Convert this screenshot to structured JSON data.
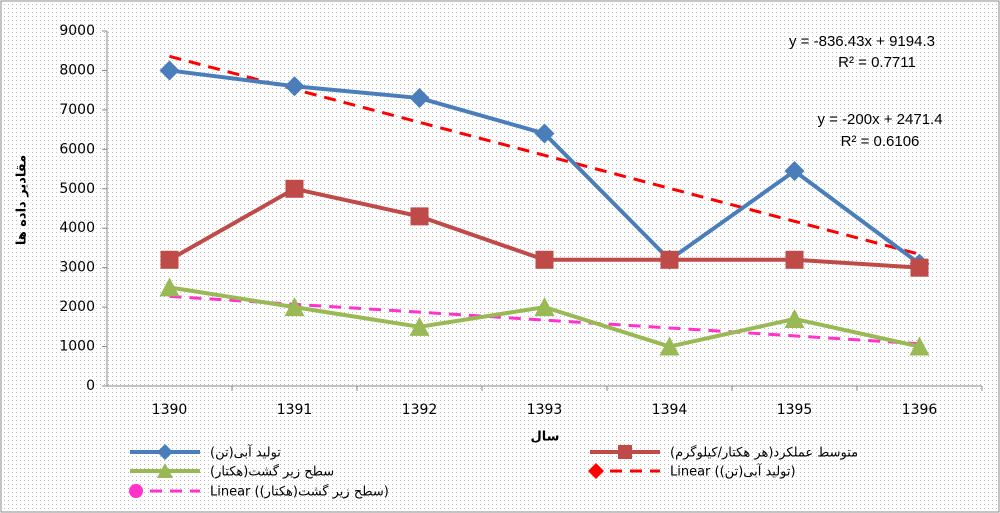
{
  "chart_data": {
    "type": "line",
    "categories": [
      "1390",
      "1391",
      "1392",
      "1393",
      "1394",
      "1395",
      "1396"
    ],
    "series": [
      {
        "name": "تولید آبی(تن)",
        "color": "#4a7ebb",
        "marker": "diamond",
        "dashed": false,
        "values": [
          8000,
          7600,
          7300,
          6400,
          3200,
          5450,
          3100
        ]
      },
      {
        "name": "متوسط عملکرد(هر هکتار/کیلوگرم)",
        "color": "#be4b48",
        "marker": "square",
        "dashed": false,
        "values": [
          3200,
          5000,
          4300,
          3200,
          3200,
          3200,
          3000
        ]
      },
      {
        "name": "سطح زیر گشت(هکتار)",
        "color": "#98b954",
        "marker": "triangle",
        "dashed": false,
        "values": [
          2500,
          2000,
          1500,
          2000,
          1000,
          1700,
          1000
        ]
      },
      {
        "name": "Linear (تولید آبی(تن))",
        "color": "#ff0000",
        "marker": "diamond",
        "dashed": true,
        "values": [
          8357.9,
          7521.4,
          6685.0,
          5848.6,
          5012.2,
          4175.7,
          3339.3
        ]
      },
      {
        "name": "Linear (سطح زیر گشت(هکتار))",
        "color": "#ff33cc",
        "marker": "circle",
        "dashed": true,
        "values": [
          2271.4,
          2071.4,
          1871.4,
          1671.4,
          1471.4,
          1271.4,
          1071.4
        ]
      }
    ],
    "ylim": [
      0,
      9000
    ],
    "yticks": [
      0,
      1000,
      2000,
      3000,
      4000,
      5000,
      6000,
      7000,
      8000,
      9000
    ],
    "grid": false,
    "x_label": "سال",
    "y_label": "مقادیر داده ها",
    "annotations": [
      "y = -836.43x + 9194.3",
      "R² = 0.7711",
      "y = -200x + 2471.4",
      "R² = 0.6106"
    ]
  }
}
